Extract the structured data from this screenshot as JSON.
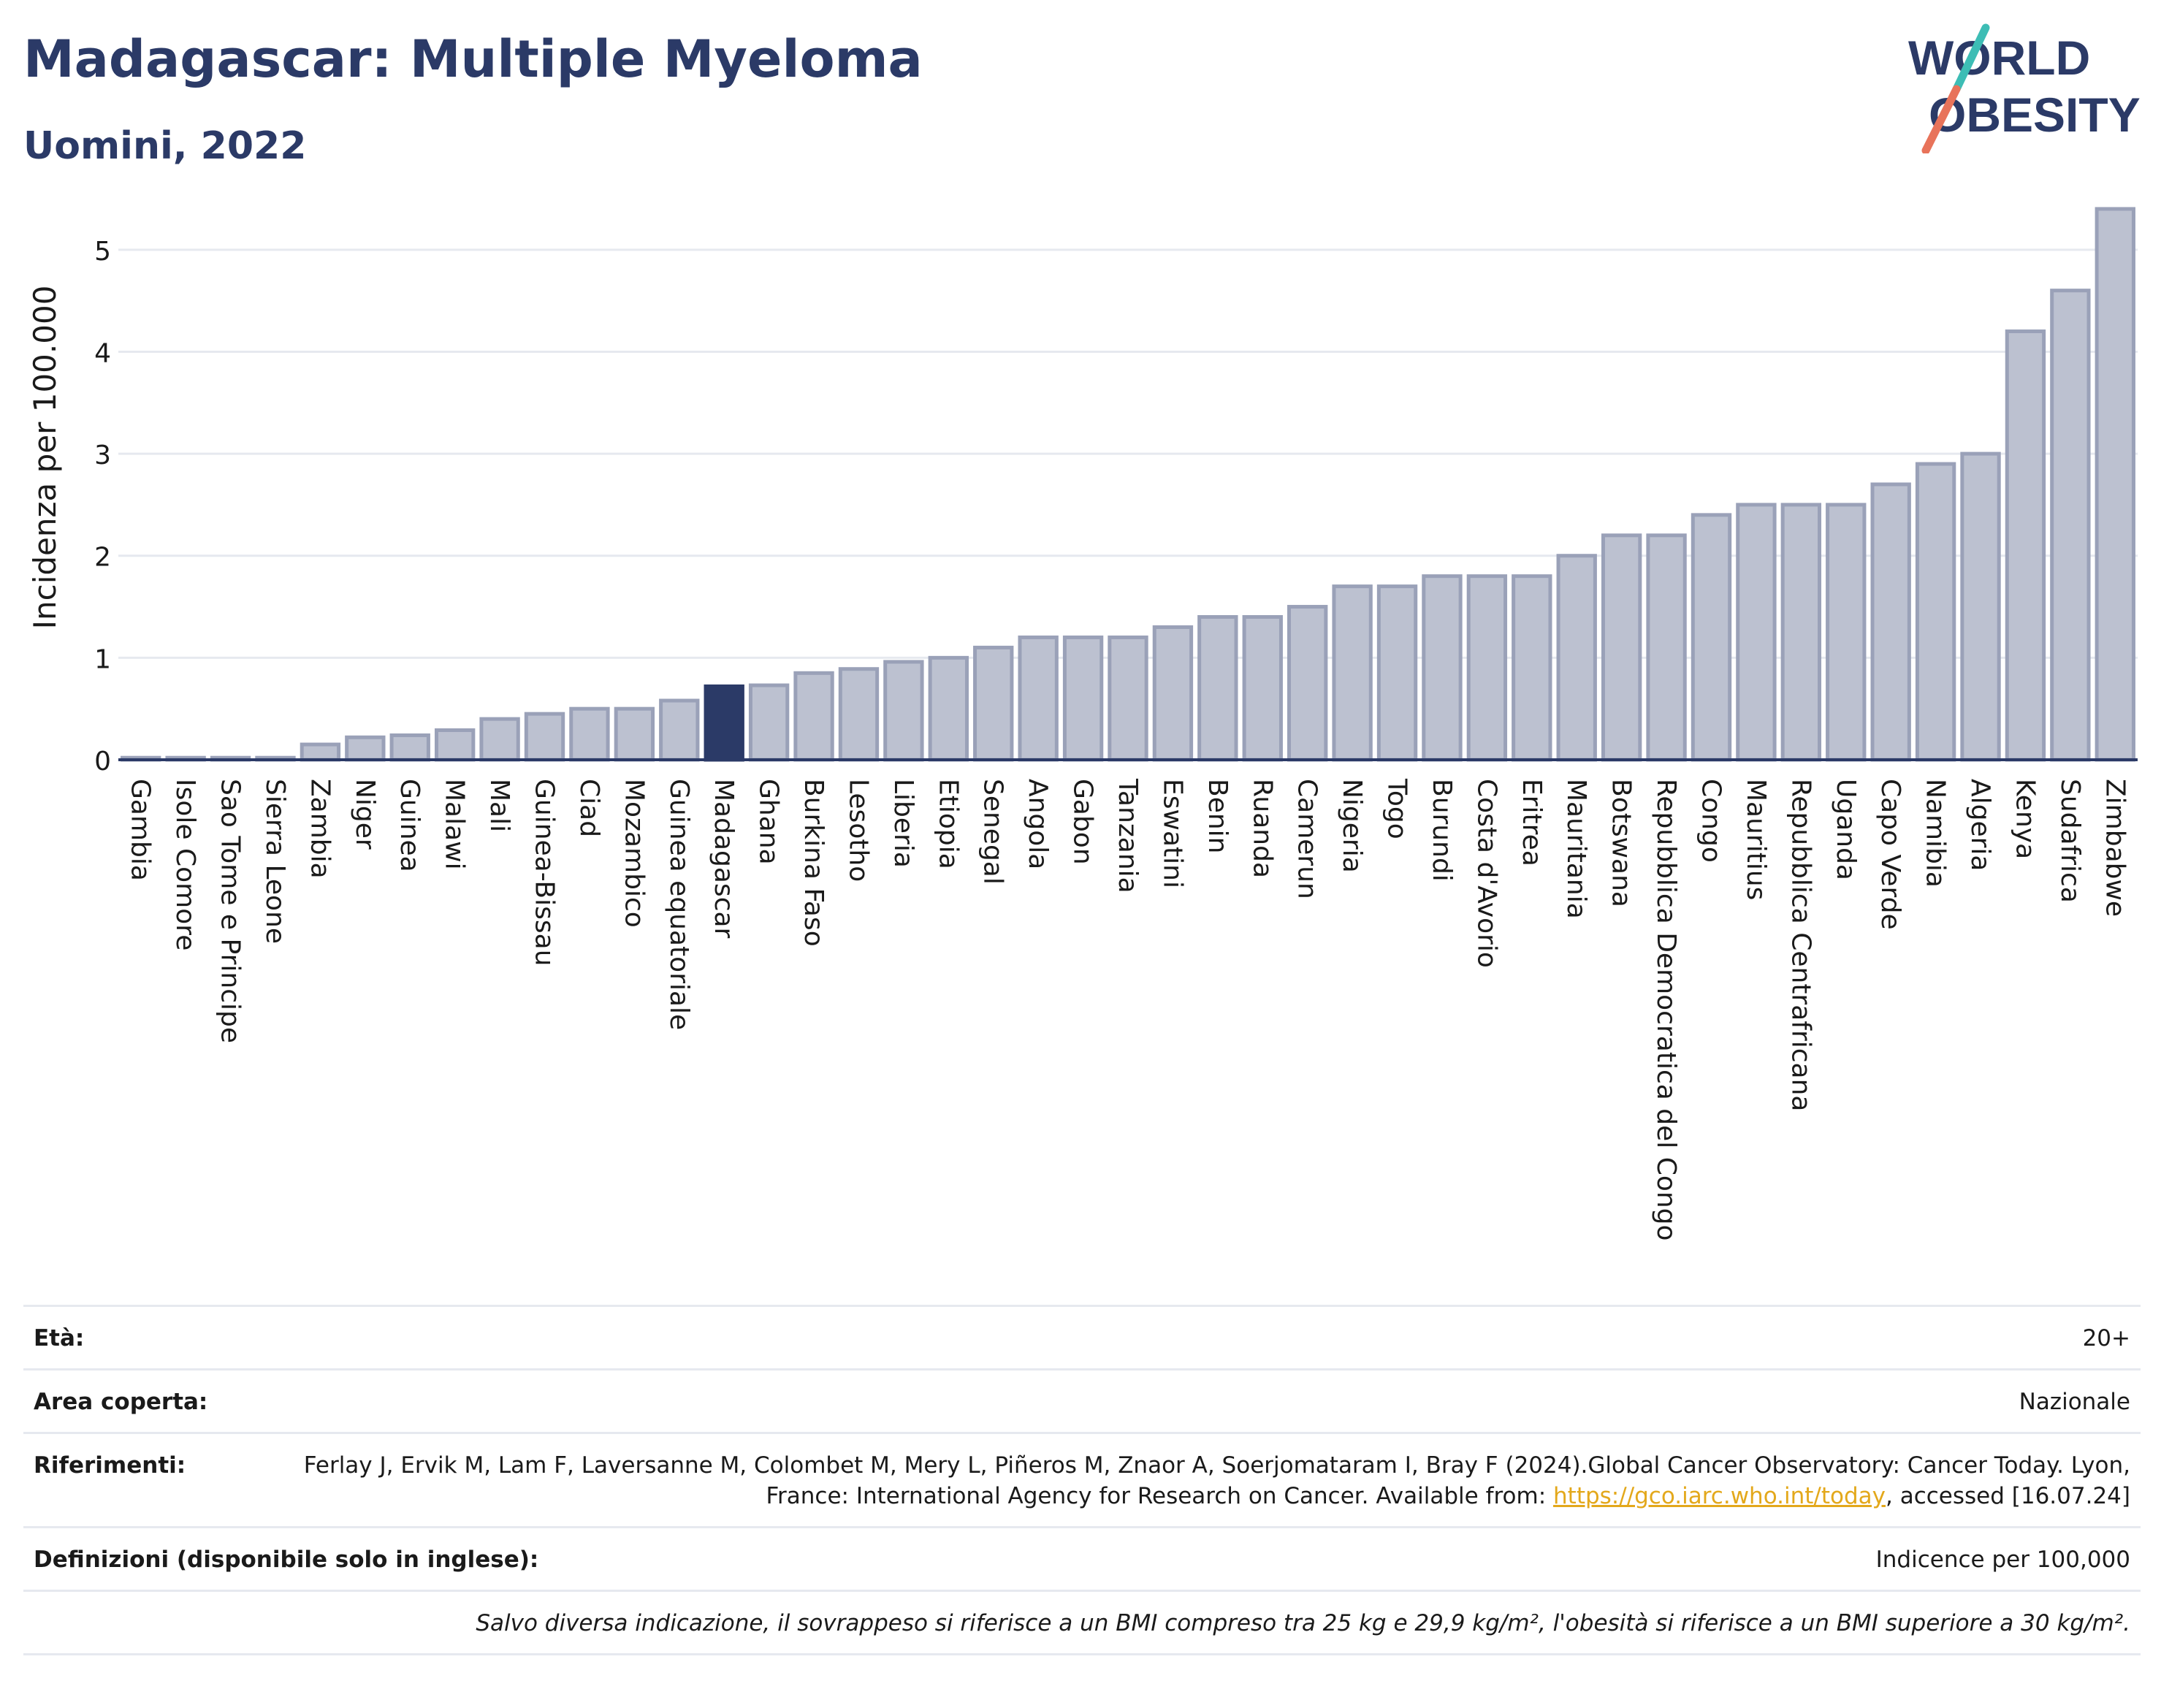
{
  "header": {
    "title": "Madagascar: Multiple Myeloma",
    "subtitle": "Uomini, 2022"
  },
  "logo": {
    "line1": "WORLD",
    "line2": "OBESITY",
    "colors": {
      "text": "#2b3a67",
      "slash_top": "#3dbdb5",
      "slash_bottom": "#e8735a"
    }
  },
  "chart_data": {
    "type": "bar",
    "ylabel": "Incidenza per 100.000",
    "xlabel": "",
    "ylim": [
      0,
      5.5
    ],
    "yticks": [
      0,
      1,
      2,
      3,
      4,
      5
    ],
    "grid": true,
    "highlight": "Madagascar",
    "colors": {
      "bar": "#bcc1d0",
      "bar_stroke": "#9aa1b8",
      "highlight": "#2b3a67",
      "grid": "#e6e9ef"
    },
    "categories": [
      "Gambia",
      "Isole Comore",
      "Sao Tome e Principe",
      "Sierra Leone",
      "Zambia",
      "Niger",
      "Guinea",
      "Malawi",
      "Mali",
      "Guinea-Bissau",
      "Ciad",
      "Mozambico",
      "Guinea equatoriale",
      "Madagascar",
      "Ghana",
      "Burkina Faso",
      "Lesotho",
      "Liberia",
      "Etiopia",
      "Senegal",
      "Angola",
      "Gabon",
      "Tanzania",
      "Eswatini",
      "Benin",
      "Ruanda",
      "Camerun",
      "Nigeria",
      "Togo",
      "Burundi",
      "Costa d'Avorio",
      "Eritrea",
      "Mauritania",
      "Botswana",
      "Repubblica Democratica del Congo",
      "Congo",
      "Mauritius",
      "Repubblica Centrafricana",
      "Uganda",
      "Capo Verde",
      "Namibia",
      "Algeria",
      "Kenya",
      "Sudafrica",
      "Zimbabwe"
    ],
    "values": [
      0.02,
      0.02,
      0.02,
      0.02,
      0.15,
      0.22,
      0.24,
      0.29,
      0.4,
      0.45,
      0.5,
      0.5,
      0.58,
      0.72,
      0.73,
      0.85,
      0.89,
      0.96,
      1.0,
      1.1,
      1.2,
      1.2,
      1.2,
      1.3,
      1.4,
      1.4,
      1.5,
      1.7,
      1.7,
      1.8,
      1.8,
      1.8,
      2.0,
      2.2,
      2.2,
      2.4,
      2.5,
      2.5,
      2.5,
      2.7,
      2.9,
      3.0,
      4.2,
      4.6,
      5.4
    ]
  },
  "meta": {
    "age_label": "Età:",
    "age_value": "20+",
    "area_label": "Area coperta:",
    "area_value": "Nazionale",
    "ref_label": "Riferimenti:",
    "ref_text_1": "Ferlay J, Ervik M, Lam F, Laversanne M, Colombet M, Mery L, Piñeros M, Znaor A, Soerjomataram I, Bray F (2024).Global Cancer Observatory: Cancer Today. Lyon, France: International Agency for Research on Cancer. Available from: ",
    "ref_link": "https://gco.iarc.who.int/today",
    "ref_text_2": ", accessed [16.07.24]",
    "def_label": "Definizioni (disponibile solo in inglese):",
    "def_value": "Indicence per 100,000",
    "note": "Salvo diversa indicazione, il sovrappeso si riferisce a un BMI compreso tra 25 kg e 29,9 kg/m², l'obesità si riferisce a un BMI superiore a 30 kg/m²."
  }
}
